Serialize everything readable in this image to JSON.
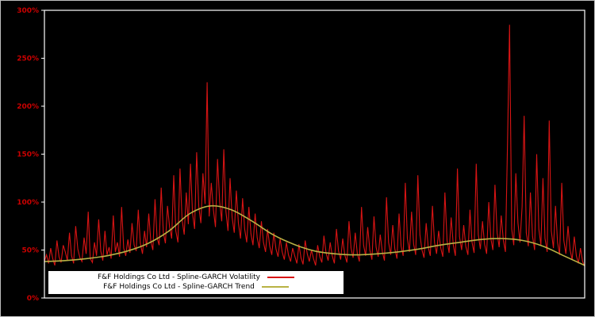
{
  "figure": {
    "background": "#000000",
    "plot_border_color": "#ffffff",
    "tick_label_color": "#cc0000"
  },
  "legend": {
    "items": [
      {
        "label": "F&F Holdings Co Ltd - Spline-GARCH Volatility",
        "color": "#d81414"
      },
      {
        "label": "F&F Holdings Co Ltd - Spline-GARCH Trend",
        "color": "#b8b244"
      }
    ]
  },
  "chart_data": {
    "type": "line",
    "title": "",
    "xlabel": "",
    "ylabel": "",
    "units": "percent",
    "ylim": [
      0,
      300
    ],
    "y_tick_values": [
      0,
      50,
      100,
      150,
      200,
      250,
      300
    ],
    "y_tick_labels": [
      "0%",
      "50%",
      "100%",
      "150%",
      "200%",
      "250%",
      "300%"
    ],
    "x_tick_labels": [],
    "grid": false,
    "legend_position": "bottom-left-inside",
    "series": [
      {
        "name": "F&F Holdings Co Ltd - Spline-GARCH Volatility",
        "color": "#d81414",
        "smooth": false,
        "values": [
          38,
          45,
          36,
          52,
          41,
          34,
          60,
          43,
          37,
          55,
          48,
          39,
          68,
          44,
          36,
          75,
          51,
          42,
          38,
          63,
          46,
          90,
          41,
          37,
          58,
          44,
          82,
          49,
          39,
          70,
          45,
          53,
          41,
          86,
          48,
          58,
          43,
          95,
          52,
          44,
          61,
          47,
          78,
          55,
          49,
          92,
          57,
          46,
          70,
          53,
          88,
          59,
          50,
          103,
          63,
          55,
          115,
          68,
          57,
          96,
          74,
          62,
          128,
          70,
          58,
          135,
          82,
          66,
          110,
          77,
          140,
          88,
          72,
          152,
          95,
          78,
          130,
          98,
          225,
          85,
          120,
          92,
          74,
          145,
          100,
          80,
          155,
          90,
          70,
          125,
          84,
          68,
          112,
          78,
          62,
          104,
          72,
          58,
          95,
          67,
          55,
          88,
          63,
          52,
          80,
          58,
          48,
          72,
          54,
          45,
          68,
          51,
          43,
          62,
          48,
          40,
          58,
          45,
          38,
          52,
          44,
          36,
          56,
          42,
          35,
          60,
          46,
          38,
          50,
          41,
          34,
          55,
          43,
          37,
          65,
          47,
          39,
          58,
          44,
          36,
          72,
          49,
          40,
          62,
          45,
          37,
          80,
          52,
          42,
          68,
          46,
          38,
          95,
          55,
          44,
          74,
          50,
          40,
          85,
          53,
          43,
          66,
          48,
          39,
          105,
          58,
          45,
          76,
          51,
          41,
          88,
          54,
          44,
          120,
          62,
          48,
          90,
          56,
          45,
          128,
          66,
          50,
          42,
          78,
          53,
          44,
          96,
          58,
          46,
          70,
          52,
          43,
          110,
          60,
          47,
          84,
          55,
          44,
          135,
          64,
          50,
          76,
          54,
          45,
          92,
          58,
          47,
          140,
          66,
          51,
          80,
          56,
          46,
          100,
          62,
          50,
          118,
          68,
          53,
          86,
          60,
          48,
          160,
          285,
          72,
          55,
          130,
          78,
          58,
          95,
          190,
          68,
          54,
          110,
          64,
          50,
          150,
          72,
          55,
          125,
          62,
          48,
          185,
          70,
          52,
          96,
          58,
          45,
          120,
          60,
          46,
          75,
          50,
          40,
          64,
          44,
          36,
          52,
          38,
          33
        ]
      },
      {
        "name": "F&F Holdings Co Ltd - Spline-GARCH Trend",
        "color": "#b8b244",
        "smooth": true,
        "values": [
          38,
          39,
          41,
          44,
          49,
          57,
          70,
          88,
          96,
          92,
          80,
          66,
          56,
          49,
          46,
          45,
          46,
          48,
          51,
          55,
          58,
          61,
          62,
          60,
          54,
          44,
          34
        ]
      }
    ]
  }
}
